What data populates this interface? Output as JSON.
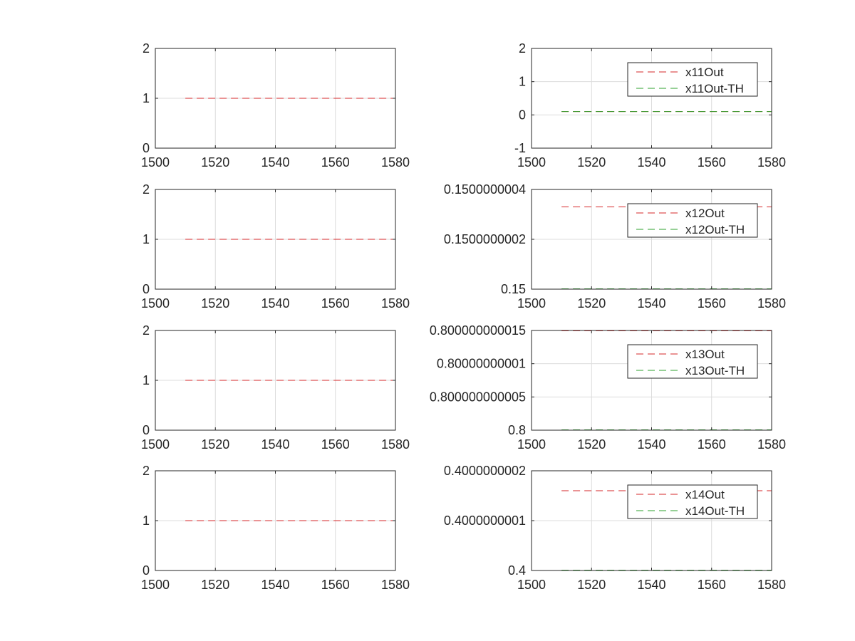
{
  "figure": {
    "layout": "4x2 subplots",
    "colors": {
      "series_red": "#d62728",
      "series_green": "#2ca02c",
      "axes": "#262626",
      "grid": "#dcdcdc",
      "background": "#ffffff"
    }
  },
  "chart_data": [
    {
      "type": "line",
      "xlim": [
        1500,
        1580
      ],
      "ylim": [
        0,
        2
      ],
      "xticks": [
        "1500",
        "1520",
        "1540",
        "1560",
        "1580"
      ],
      "yticks": [
        {
          "v": 0,
          "label": "0"
        },
        {
          "v": 1,
          "label": "1"
        },
        {
          "v": 2,
          "label": "2"
        }
      ],
      "grid": true,
      "legend": null,
      "series": [
        {
          "color": "#d62728",
          "style": "dashed",
          "x": [
            1510,
            1580
          ],
          "y": [
            1,
            1
          ]
        }
      ]
    },
    {
      "type": "line",
      "xlim": [
        1500,
        1580
      ],
      "ylim": [
        -1,
        2
      ],
      "xticks": [
        "1500",
        "1520",
        "1540",
        "1560",
        "1580"
      ],
      "yticks": [
        {
          "v": -1,
          "label": "-1"
        },
        {
          "v": 0,
          "label": "0"
        },
        {
          "v": 1,
          "label": "1"
        },
        {
          "v": 2,
          "label": "2"
        }
      ],
      "grid": true,
      "legend": "top-right",
      "series": [
        {
          "name": "x11Out",
          "color": "#d62728",
          "style": "dashed",
          "x": [
            1510,
            1580
          ],
          "y": [
            0.1,
            0.1
          ]
        },
        {
          "name": "x11Out-TH",
          "color": "#2ca02c",
          "style": "dashed",
          "x": [
            1510,
            1580
          ],
          "y": [
            0.1,
            0.1
          ]
        }
      ]
    },
    {
      "type": "line",
      "xlim": [
        1500,
        1580
      ],
      "ylim": [
        0,
        2
      ],
      "xticks": [
        "1500",
        "1520",
        "1540",
        "1560",
        "1580"
      ],
      "yticks": [
        {
          "v": 0,
          "label": "0"
        },
        {
          "v": 1,
          "label": "1"
        },
        {
          "v": 2,
          "label": "2"
        }
      ],
      "grid": true,
      "legend": null,
      "series": [
        {
          "color": "#d62728",
          "style": "dashed",
          "x": [
            1510,
            1580
          ],
          "y": [
            1,
            1
          ]
        }
      ]
    },
    {
      "type": "line",
      "xlim": [
        1500,
        1580
      ],
      "ylim": [
        0.15,
        0.1500000004
      ],
      "xticks": [
        "1500",
        "1520",
        "1540",
        "1560",
        "1580"
      ],
      "yticks": [
        {
          "v": 0.15,
          "label": "0.15"
        },
        {
          "v": 0.1500000002,
          "label": "0.1500000002"
        },
        {
          "v": 0.1500000004,
          "label": "0.1500000004"
        }
      ],
      "grid": true,
      "legend": "top-right",
      "series": [
        {
          "name": "x12Out",
          "color": "#d62728",
          "style": "dashed",
          "x": [
            1510,
            1580
          ],
          "y": [
            0.15000000033,
            0.15000000033
          ]
        },
        {
          "name": "x12Out-TH",
          "color": "#2ca02c",
          "style": "dashed",
          "x": [
            1510,
            1580
          ],
          "y": [
            0.15,
            0.15
          ]
        }
      ]
    },
    {
      "type": "line",
      "xlim": [
        1500,
        1580
      ],
      "ylim": [
        0,
        2
      ],
      "xticks": [
        "1500",
        "1520",
        "1540",
        "1560",
        "1580"
      ],
      "yticks": [
        {
          "v": 0,
          "label": "0"
        },
        {
          "v": 1,
          "label": "1"
        },
        {
          "v": 2,
          "label": "2"
        }
      ],
      "grid": true,
      "legend": null,
      "series": [
        {
          "color": "#d62728",
          "style": "dashed",
          "x": [
            1510,
            1580
          ],
          "y": [
            1,
            1
          ]
        }
      ]
    },
    {
      "type": "line",
      "xlim": [
        1500,
        1580
      ],
      "ylim": [
        0.8,
        0.800000000015
      ],
      "xticks": [
        "1500",
        "1520",
        "1540",
        "1560",
        "1580"
      ],
      "yticks": [
        {
          "v": 0.8,
          "label": "0.8"
        },
        {
          "v": 0.800000000005,
          "label": "0.800000000005"
        },
        {
          "v": 0.80000000001,
          "label": "0.80000000001"
        },
        {
          "v": 0.800000000015,
          "label": "0.800000000015"
        }
      ],
      "grid": true,
      "legend": "top-right",
      "series": [
        {
          "name": "x13Out",
          "color": "#d62728",
          "style": "dashed",
          "x": [
            1510,
            1580
          ],
          "y": [
            0.800000000015,
            0.800000000015
          ]
        },
        {
          "name": "x13Out-TH",
          "color": "#2ca02c",
          "style": "dashed",
          "x": [
            1510,
            1580
          ],
          "y": [
            0.8,
            0.8
          ]
        }
      ]
    },
    {
      "type": "line",
      "xlim": [
        1500,
        1580
      ],
      "ylim": [
        0,
        2
      ],
      "xticks": [
        "1500",
        "1520",
        "1540",
        "1560",
        "1580"
      ],
      "yticks": [
        {
          "v": 0,
          "label": "0"
        },
        {
          "v": 1,
          "label": "1"
        },
        {
          "v": 2,
          "label": "2"
        }
      ],
      "grid": true,
      "legend": null,
      "series": [
        {
          "color": "#d62728",
          "style": "dashed",
          "x": [
            1510,
            1580
          ],
          "y": [
            1,
            1
          ]
        }
      ]
    },
    {
      "type": "line",
      "xlim": [
        1500,
        1580
      ],
      "ylim": [
        0.4,
        0.4000000002
      ],
      "xticks": [
        "1500",
        "1520",
        "1540",
        "1560",
        "1580"
      ],
      "yticks": [
        {
          "v": 0.4,
          "label": "0.4"
        },
        {
          "v": 0.4000000001,
          "label": "0.4000000001"
        },
        {
          "v": 0.4000000002,
          "label": "0.4000000002"
        }
      ],
      "grid": true,
      "legend": "top-right",
      "series": [
        {
          "name": "x14Out",
          "color": "#d62728",
          "style": "dashed",
          "x": [
            1510,
            1580
          ],
          "y": [
            0.40000000016,
            0.40000000016
          ]
        },
        {
          "name": "x14Out-TH",
          "color": "#2ca02c",
          "style": "dashed",
          "x": [
            1510,
            1580
          ],
          "y": [
            0.4,
            0.4
          ]
        }
      ]
    }
  ]
}
